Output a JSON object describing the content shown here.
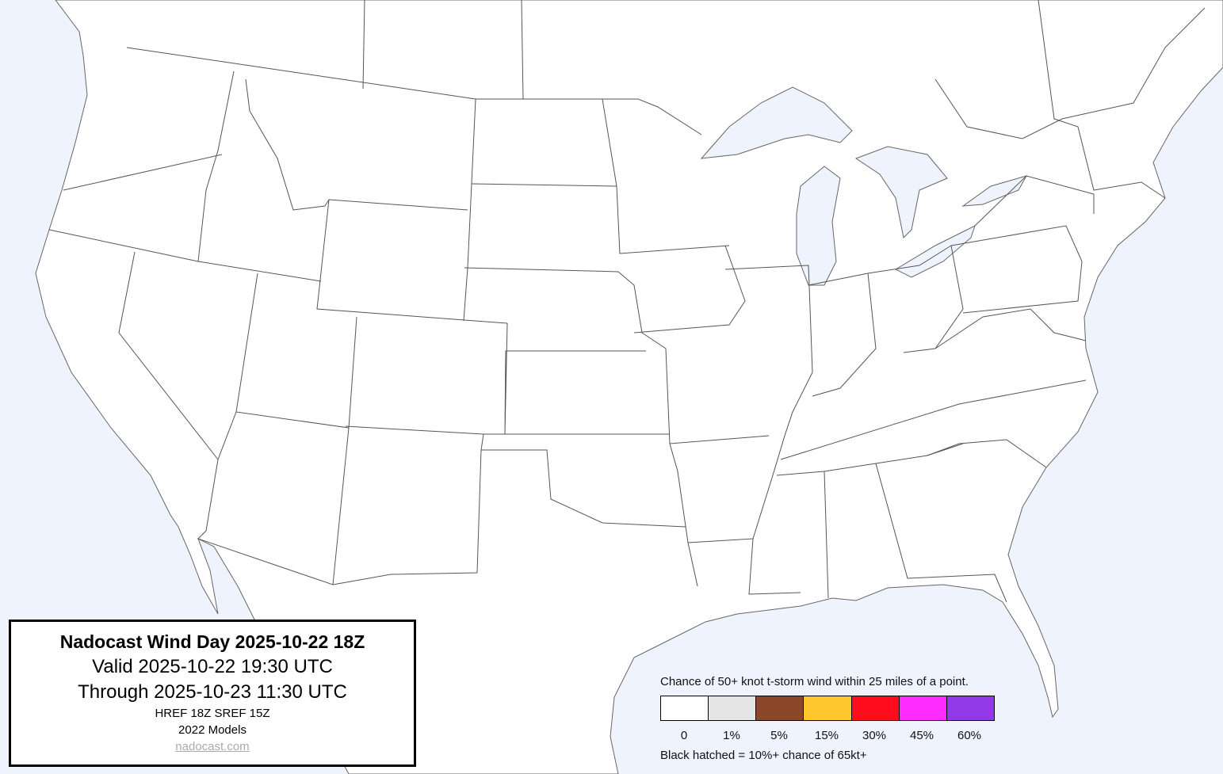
{
  "title_box": {
    "title": "Nadocast Wind Day 2025-10-22 18Z",
    "valid": "Valid 2025-10-22 19:30 UTC",
    "through": "Through 2025-10-23 11:30 UTC",
    "models": "HREF 18Z SREF 15Z",
    "model_version": "2022 Models",
    "site": "nadocast.com"
  },
  "legend": {
    "title": "Chance of 50+ knot t-storm wind within 25 miles of a point.",
    "bins": [
      {
        "label": "0",
        "color": "#ffffff"
      },
      {
        "label": "1%",
        "color": "#e5e5e5"
      },
      {
        "label": "5%",
        "color": "#8b472a"
      },
      {
        "label": "15%",
        "color": "#ffc62e"
      },
      {
        "label": "30%",
        "color": "#ff0d1c"
      },
      {
        "label": "45%",
        "color": "#ff2cff"
      },
      {
        "label": "60%",
        "color": "#9239e8"
      }
    ],
    "note": "Black hatched = 10%+ chance of 65kt+"
  },
  "colors": {
    "water": "#eef3fd",
    "land": "#ffffff",
    "borders": "#555555"
  }
}
